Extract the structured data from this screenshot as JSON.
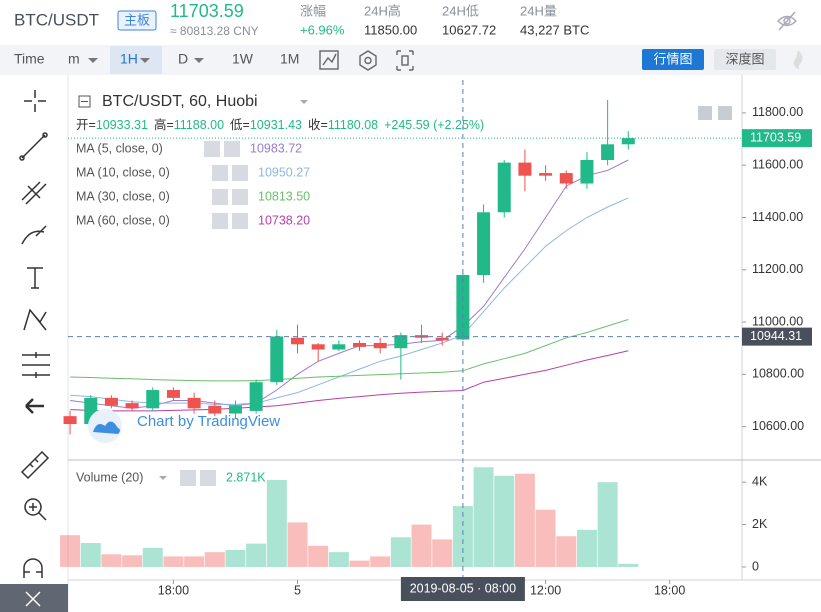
{
  "header": {
    "pair": "BTC/USDT",
    "tag": "主板",
    "price": "11703.59",
    "cny": "≈ 80813.28 CNY",
    "stats": [
      {
        "label": "涨幅",
        "value": "+6.96%"
      },
      {
        "label": "24H高",
        "value": "11850.00"
      },
      {
        "label": "24H低",
        "value": "10627.72"
      },
      {
        "label": "24H量",
        "value": "43,227 BTC"
      }
    ]
  },
  "toolbar": {
    "intervals": [
      "Time",
      "m",
      "1H",
      "D",
      "1W",
      "1M"
    ],
    "views": [
      "行情图",
      "深度图"
    ]
  },
  "chart_data": {
    "type": "candlestick",
    "title": "BTC/USDT, 60, Huobi",
    "ohlc_legend": [
      {
        "label": "开=",
        "value": "10933.31"
      },
      {
        "label": "高=",
        "value": "11188.00"
      },
      {
        "label": "低=",
        "value": "10931.43"
      },
      {
        "label": "收=",
        "value": "11180.08"
      }
    ],
    "change": "+245.59 (+2.25%)",
    "up_color": "#21b98a",
    "down_color": "#ef5350",
    "x": [
      -11,
      -10,
      -9,
      -8,
      -7,
      -6,
      -5,
      -4,
      -3,
      -2,
      -1,
      0,
      1,
      2,
      3,
      4,
      5,
      6,
      7,
      8,
      9,
      10,
      11,
      12,
      13,
      14,
      15,
      16
    ],
    "xlim": [
      -11.1,
      21.5
    ],
    "xticks": [
      {
        "value": -6,
        "label": "18:00"
      },
      {
        "value": 0,
        "label": "5"
      },
      {
        "value": 12,
        "label": "12:00"
      },
      {
        "value": 18,
        "label": "18:00"
      }
    ],
    "candles": [
      {
        "open": 10640,
        "high": 10660,
        "low": 10570,
        "close": 10610
      },
      {
        "open": 10610,
        "high": 10720,
        "low": 10600,
        "close": 10710
      },
      {
        "open": 10710,
        "high": 10720,
        "low": 10670,
        "close": 10680
      },
      {
        "open": 10690,
        "high": 10700,
        "low": 10660,
        "close": 10670
      },
      {
        "open": 10670,
        "high": 10750,
        "low": 10660,
        "close": 10740
      },
      {
        "open": 10740,
        "high": 10750,
        "low": 10700,
        "close": 10710
      },
      {
        "open": 10710,
        "high": 10730,
        "low": 10650,
        "close": 10670
      },
      {
        "open": 10680,
        "high": 10700,
        "low": 10640,
        "close": 10650
      },
      {
        "open": 10650,
        "high": 10700,
        "low": 10630,
        "close": 10680
      },
      {
        "open": 10660,
        "high": 10780,
        "low": 10650,
        "close": 10770
      },
      {
        "open": 10770,
        "high": 10970,
        "low": 10760,
        "close": 10945
      },
      {
        "open": 10940,
        "high": 10990,
        "low": 10880,
        "close": 10915
      },
      {
        "open": 10915,
        "high": 10920,
        "low": 10850,
        "close": 10895
      },
      {
        "open": 10895,
        "high": 10930,
        "low": 10890,
        "close": 10915
      },
      {
        "open": 10920,
        "high": 10930,
        "low": 10890,
        "close": 10905
      },
      {
        "open": 10920,
        "high": 10940,
        "low": 10880,
        "close": 10900
      },
      {
        "open": 10900,
        "high": 10960,
        "low": 10780,
        "close": 10950
      },
      {
        "open": 10950,
        "high": 10990,
        "low": 10920,
        "close": 10940
      },
      {
        "open": 10940,
        "high": 10960,
        "low": 10910,
        "close": 10930
      },
      {
        "open": 10933.31,
        "high": 11188,
        "low": 10931.43,
        "close": 11180.08
      },
      {
        "open": 11180,
        "high": 11450,
        "low": 11150,
        "close": 11420
      },
      {
        "open": 11420,
        "high": 11620,
        "low": 11400,
        "close": 11610
      },
      {
        "open": 11610,
        "high": 11660,
        "low": 11500,
        "close": 11560
      },
      {
        "open": 11570,
        "high": 11600,
        "low": 11540,
        "close": 11560
      },
      {
        "open": 11570,
        "high": 11580,
        "low": 11510,
        "close": 11530
      },
      {
        "open": 11530,
        "high": 11650,
        "low": 11510,
        "close": 11620
      },
      {
        "open": 11620,
        "high": 11850,
        "low": 11600,
        "close": 11680
      },
      {
        "open": 11680,
        "high": 11730,
        "low": 11660,
        "close": 11703.59
      }
    ],
    "ylim": [
      10480,
      11926
    ],
    "yticks": [
      {
        "value": 10600,
        "label": "10600.00"
      },
      {
        "value": 10800,
        "label": "10800.00"
      },
      {
        "value": 11000,
        "label": "11000.00"
      },
      {
        "value": 11200,
        "label": "11200.00"
      },
      {
        "value": 11400,
        "label": "11400.00"
      },
      {
        "value": 11600,
        "label": "11600.00"
      },
      {
        "value": 11800,
        "label": "11800.00"
      }
    ],
    "last_price": 11703.59,
    "crosshair": {
      "x": 8,
      "x_label": "2019-08-05 · 08:00",
      "y": 10944.31
    },
    "ma": [
      {
        "name": "MA (5, close, 0)",
        "color": "#9b7dcb",
        "value_label": "10983.72",
        "values": [
          10700,
          10690,
          10680,
          10670,
          10680,
          10700,
          10700,
          10690,
          10680,
          10690,
          10740,
          10800,
          10850,
          10880,
          10910,
          10910,
          10915,
          10925,
          10930,
          10983.72,
          11060,
          11170,
          11280,
          11400,
          11520,
          11560,
          11580,
          11620
        ]
      },
      {
        "name": "MA (10, close, 0)",
        "color": "#8db8e2",
        "value_label": "10950.27",
        "values": [
          10720,
          10715,
          10705,
          10695,
          10690,
          10690,
          10690,
          10685,
          10685,
          10690,
          10710,
          10730,
          10760,
          10790,
          10820,
          10850,
          10870,
          10895,
          10920,
          10950.27,
          11040,
          11130,
          11210,
          11290,
          11350,
          11400,
          11440,
          11475
        ]
      },
      {
        "name": "MA (30, close, 0)",
        "color": "#6bbf6b",
        "value_label": "10813.50",
        "values": [
          10790,
          10788,
          10785,
          10783,
          10780,
          10778,
          10776,
          10775,
          10775,
          10776,
          10780,
          10785,
          10790,
          10793,
          10796,
          10799,
          10802,
          10805,
          10808,
          10813.5,
          10840,
          10860,
          10880,
          10910,
          10940,
          10960,
          10985,
          11010
        ]
      },
      {
        "name": "MA (60, close, 0)",
        "color": "#b83fa7",
        "value_label": "10738.20",
        "values": [
          10665,
          10662,
          10660,
          10660,
          10660,
          10662,
          10664,
          10666,
          10670,
          10675,
          10680,
          10690,
          10700,
          10708,
          10715,
          10722,
          10728,
          10732,
          10735,
          10738.2,
          10770,
          10785,
          10800,
          10815,
          10835,
          10855,
          10872,
          10890
        ]
      }
    ],
    "volume": {
      "name": "Volume (20)",
      "value_label": "2.871K",
      "values": [
        1500,
        1130,
        600,
        550,
        900,
        500,
        500,
        700,
        800,
        1100,
        4100,
        2100,
        1000,
        700,
        300,
        500,
        1400,
        2000,
        1300,
        2871,
        4700,
        4300,
        4400,
        2700,
        1450,
        1750,
        4000,
        150
      ],
      "ylim": [
        -520,
        4950
      ],
      "yticks": [
        0,
        {
          "value": 2000,
          "label": "2K"
        },
        {
          "value": 4000,
          "label": "4K"
        }
      ]
    },
    "watermark": "Chart by TradingView"
  }
}
